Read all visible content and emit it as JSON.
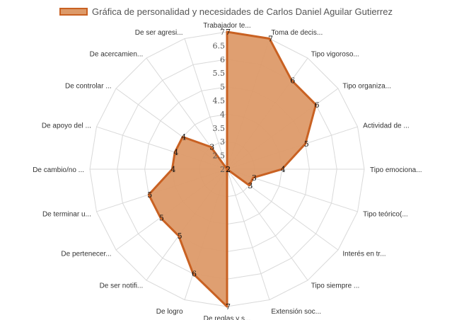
{
  "chart_data": {
    "type": "radar",
    "legend_position": "top",
    "grid": true,
    "rlim": [
      2,
      7
    ],
    "ticks": [
      "2",
      "2.5",
      "3",
      "3.5",
      "4",
      "4.5",
      "5",
      "5.5",
      "6",
      "6.5",
      "7"
    ],
    "categories": [
      "Trabajador te...",
      "Toma de decis...",
      "Tipo vigoroso...",
      "Tipo organiza...",
      "Actividad de ...",
      "Tipo emociona...",
      "Tipo teórico(...",
      "Interés en tr...",
      "Tipo siempre ...",
      "Extensión soc...",
      "De reglas y s...",
      "De logro",
      "De ser notifi...",
      "De pertenecer...",
      "De terminar u...",
      "De cambio/no ...",
      "De apoyo del ...",
      "De controlar ...",
      "De acercamien...",
      "De ser agresi..."
    ],
    "series": [
      {
        "name": "Gráfica de personalidad y necesidades de Carlos Daniel Aguilar Gutierrez",
        "values": [
          7,
          7,
          6,
          6,
          5,
          4,
          3,
          3,
          2,
          2,
          7,
          6,
          5,
          5,
          5,
          4,
          4,
          4,
          3,
          2
        ],
        "color": "#c96122",
        "fill": "#dd9a69"
      }
    ]
  }
}
